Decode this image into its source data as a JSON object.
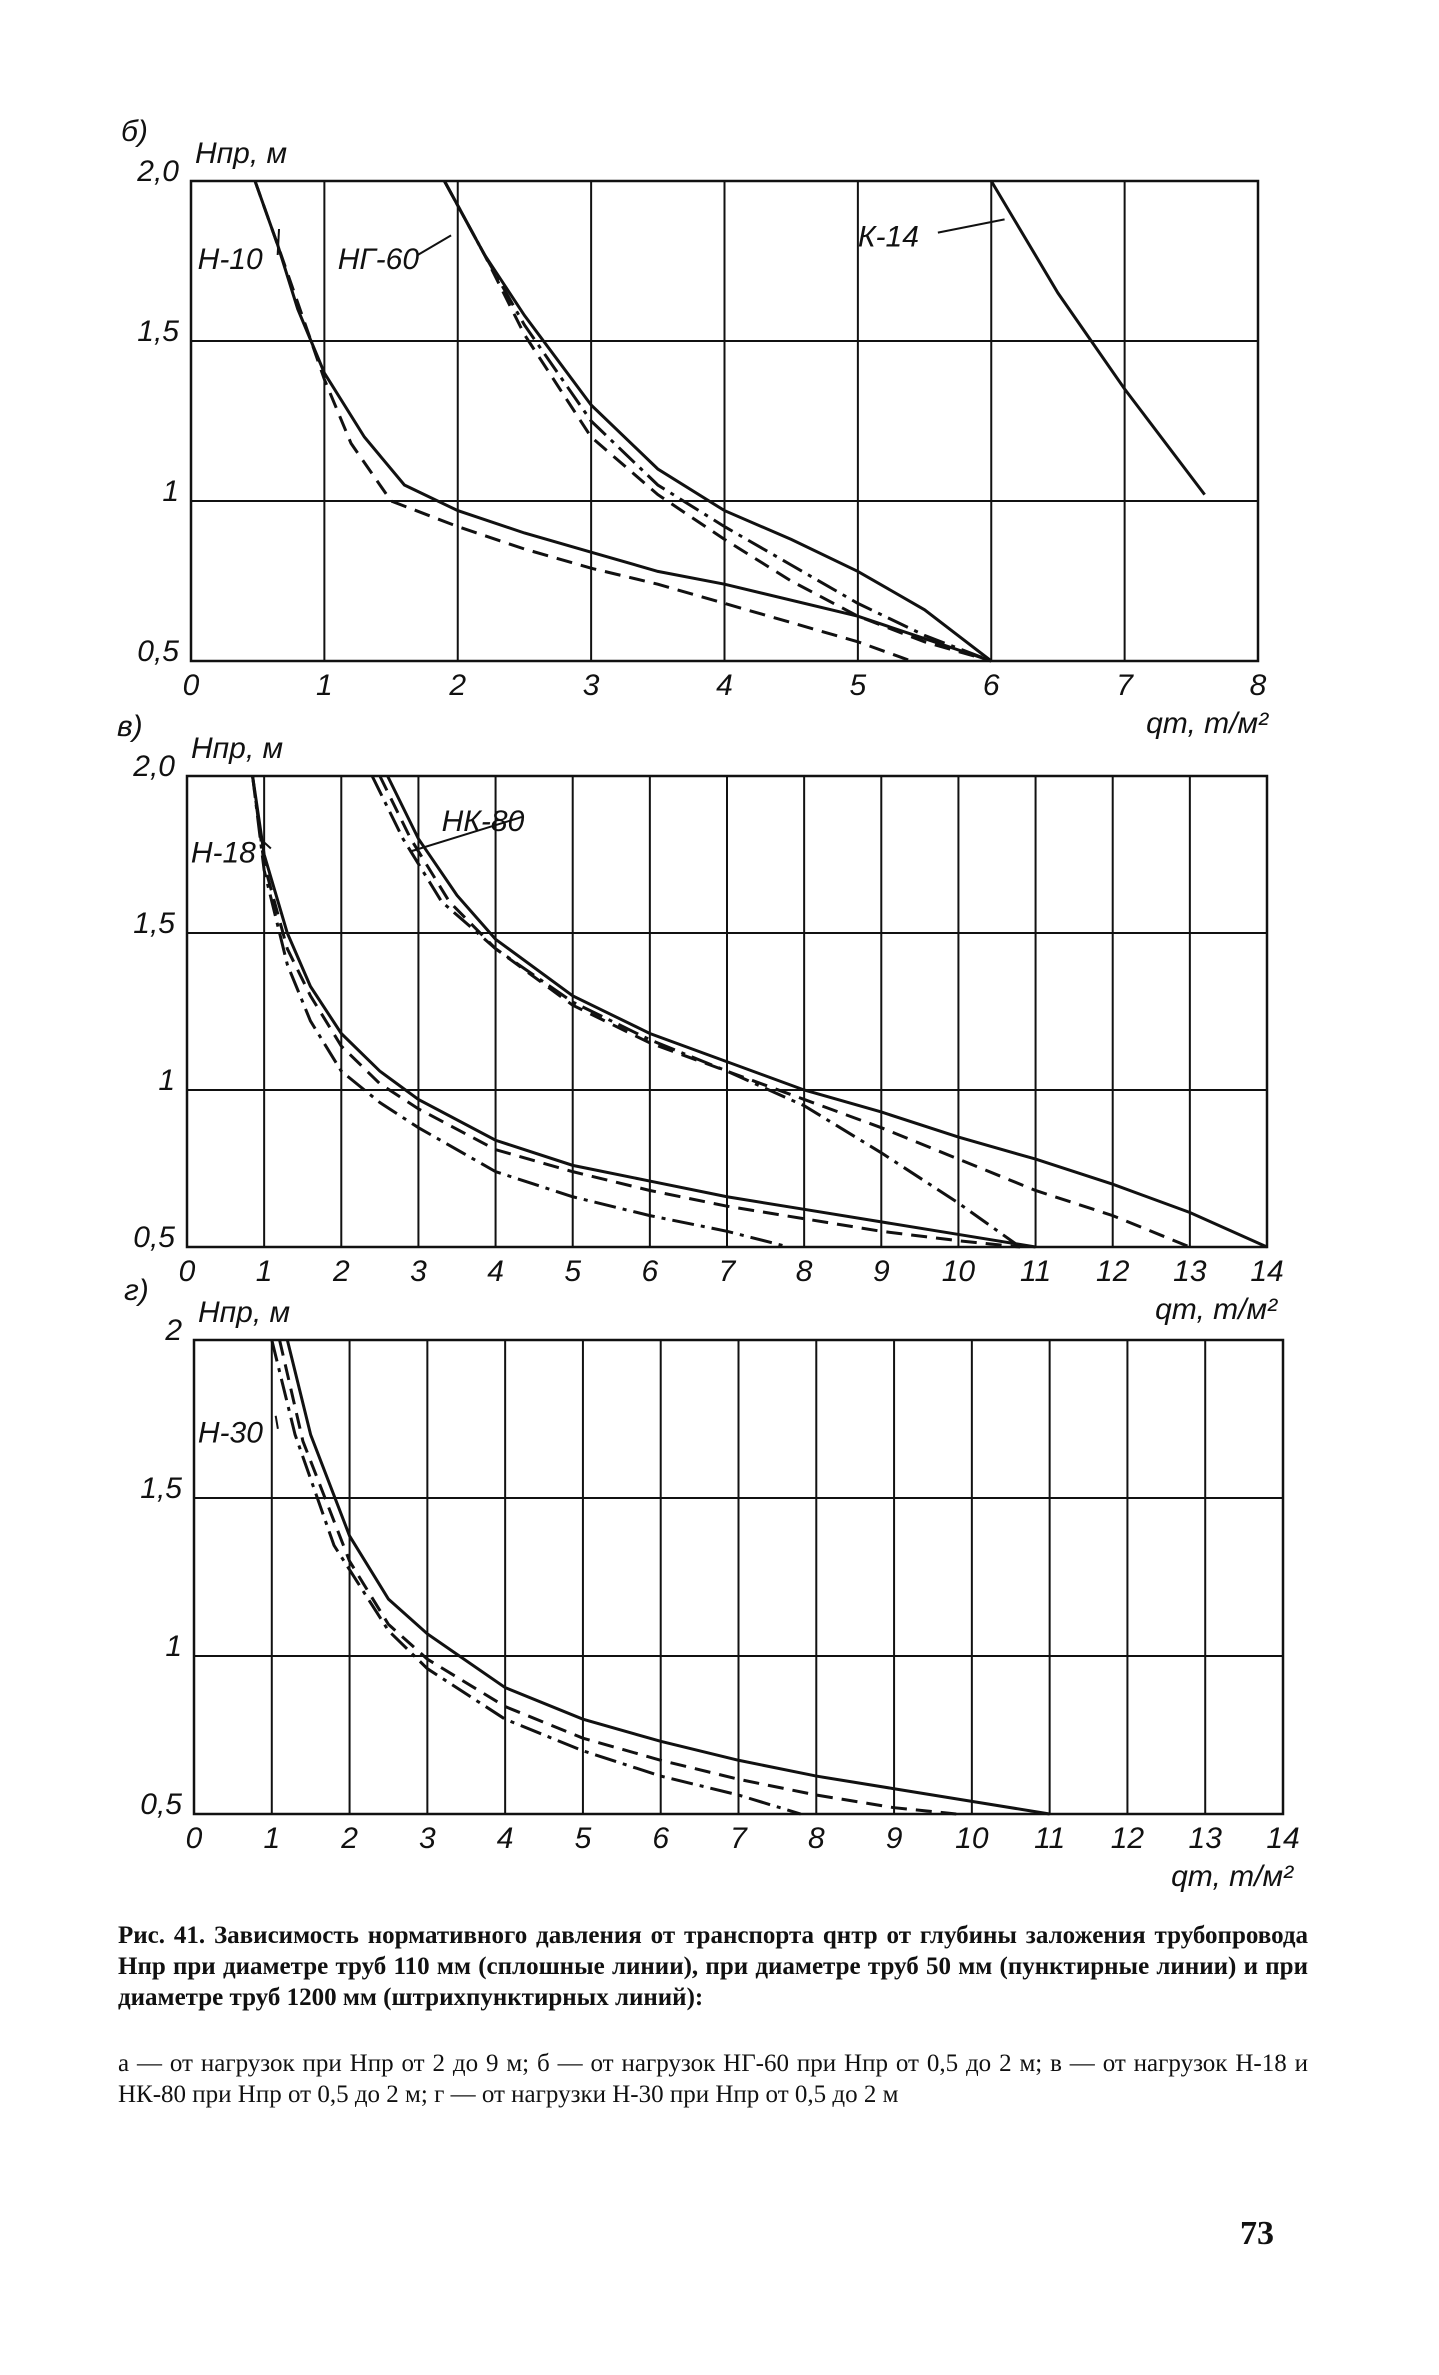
{
  "chart_data": [
    {
      "type": "line",
      "panel_label": "б)",
      "ylabel": "Hпр, м",
      "xlabel": "qт, т/м²",
      "xlim": [
        0,
        8
      ],
      "ylim": [
        0.5,
        2
      ],
      "xticks": [
        0,
        1,
        2,
        3,
        4,
        5,
        6,
        7,
        8
      ],
      "yticks": [
        {
          "value": 0.5,
          "label": "0,5"
        },
        1,
        {
          "value": 1.5,
          "label": "1,5"
        },
        {
          "value": 2,
          "label": "2,0"
        }
      ],
      "grid": true,
      "annotations": [
        "Н-10",
        "НГ-60",
        "К-14"
      ],
      "series": [
        {
          "color": "#111111",
          "dash": "solid",
          "x": [
            0.48,
            0.65,
            0.8,
            1.0,
            1.3,
            1.6,
            2.0,
            2.5,
            3.0,
            3.5,
            4.0,
            5.0,
            6.0
          ],
          "values": [
            2,
            1.8,
            1.6,
            1.4,
            1.2,
            1.05,
            0.97,
            0.9,
            0.84,
            0.78,
            0.74,
            0.64,
            0.5
          ]
        },
        {
          "color": "#111111",
          "dash": "dashed",
          "x": [
            0.48,
            0.65,
            0.8,
            1.0,
            1.2,
            1.5,
            2.0,
            2.5,
            3.0,
            3.5,
            4.0,
            4.5,
            5.0,
            5.4
          ],
          "values": [
            2,
            1.8,
            1.62,
            1.38,
            1.18,
            1.0,
            0.92,
            0.85,
            0.79,
            0.74,
            0.68,
            0.62,
            0.56,
            0.5
          ]
        },
        {
          "color": "#111111",
          "dash": "solid",
          "x": [
            1.9,
            2.2,
            2.5,
            3.0,
            3.5,
            4.0,
            4.5,
            5.0,
            5.5,
            6.0
          ],
          "values": [
            2,
            1.77,
            1.58,
            1.3,
            1.1,
            0.97,
            0.88,
            0.78,
            0.66,
            0.5
          ]
        },
        {
          "color": "#111111",
          "dash": "dashdot",
          "x": [
            1.9,
            2.2,
            2.5,
            3.0,
            3.5,
            4.0,
            4.5,
            5.0,
            5.5,
            6.0
          ],
          "values": [
            2,
            1.77,
            1.55,
            1.25,
            1.05,
            0.92,
            0.8,
            0.68,
            0.58,
            0.5
          ]
        },
        {
          "color": "#111111",
          "dash": "dashed",
          "x": [
            1.9,
            2.2,
            2.5,
            3.0,
            3.5,
            4.0,
            4.5,
            5.0,
            5.5,
            6.0
          ],
          "values": [
            2,
            1.77,
            1.52,
            1.2,
            1.02,
            0.88,
            0.75,
            0.64,
            0.56,
            0.5
          ]
        },
        {
          "color": "#111111",
          "dash": "solid",
          "x": [
            6.0,
            6.5,
            7.0,
            7.6
          ],
          "values": [
            2,
            1.65,
            1.35,
            1.02
          ]
        }
      ]
    },
    {
      "type": "line",
      "panel_label": "в)",
      "ylabel": "Hпр, м",
      "xlabel": "qт, т/м²",
      "xlim": [
        0,
        14
      ],
      "ylim": [
        0.5,
        2
      ],
      "xticks": [
        0,
        1,
        2,
        3,
        4,
        5,
        6,
        7,
        8,
        9,
        10,
        11,
        12,
        13,
        14
      ],
      "yticks": [
        {
          "value": 0.5,
          "label": "0,5"
        },
        1,
        {
          "value": 1.5,
          "label": "1,5"
        },
        {
          "value": 2,
          "label": "2,0"
        }
      ],
      "grid": true,
      "annotations": [
        "Н-18",
        "НК-80"
      ],
      "series": [
        {
          "color": "#111111",
          "dash": "solid",
          "x": [
            0.85,
            1.0,
            1.3,
            1.6,
            2.0,
            2.5,
            3.0,
            4.0,
            5.0,
            6.0,
            7.0,
            8.0,
            9.0,
            10.0,
            11.0
          ],
          "values": [
            2,
            1.75,
            1.5,
            1.33,
            1.18,
            1.06,
            0.97,
            0.84,
            0.76,
            0.71,
            0.66,
            0.62,
            0.58,
            0.54,
            0.5
          ]
        },
        {
          "color": "#111111",
          "dash": "dashed",
          "x": [
            0.85,
            1.0,
            1.3,
            1.6,
            2.0,
            2.5,
            3.0,
            4.0,
            5.0,
            6.0,
            7.0,
            8.0,
            9.0,
            10.0,
            10.8
          ],
          "values": [
            2,
            1.72,
            1.45,
            1.3,
            1.14,
            1.02,
            0.94,
            0.81,
            0.74,
            0.68,
            0.63,
            0.59,
            0.55,
            0.52,
            0.5
          ]
        },
        {
          "color": "#111111",
          "dash": "dashdot",
          "x": [
            0.85,
            1.0,
            1.3,
            1.6,
            2.0,
            2.5,
            3.0,
            4.0,
            5.0,
            6.0,
            7.0,
            7.8
          ],
          "values": [
            2,
            1.7,
            1.4,
            1.22,
            1.06,
            0.96,
            0.88,
            0.74,
            0.66,
            0.6,
            0.55,
            0.5
          ]
        },
        {
          "color": "#111111",
          "dash": "solid",
          "x": [
            2.6,
            3.0,
            3.5,
            4.0,
            5.0,
            6.0,
            7.0,
            8.0,
            9.0,
            10.0,
            11.0,
            12.0,
            13.0,
            14.0
          ],
          "values": [
            2,
            1.8,
            1.62,
            1.48,
            1.3,
            1.18,
            1.09,
            1.0,
            0.93,
            0.85,
            0.78,
            0.7,
            0.61,
            0.5
          ]
        },
        {
          "color": "#111111",
          "dash": "dashed",
          "x": [
            2.5,
            2.9,
            3.4,
            4.0,
            5.0,
            6.0,
            7.0,
            8.0,
            9.0,
            10.0,
            11.0,
            12.0,
            13.0
          ],
          "values": [
            2,
            1.8,
            1.6,
            1.45,
            1.27,
            1.15,
            1.06,
            0.97,
            0.88,
            0.78,
            0.68,
            0.6,
            0.5
          ]
        },
        {
          "color": "#111111",
          "dash": "dashdot",
          "x": [
            2.4,
            2.8,
            3.3,
            4.0,
            5.0,
            6.0,
            7.0,
            8.0,
            9.0,
            10.0,
            10.8
          ],
          "values": [
            2,
            1.8,
            1.6,
            1.45,
            1.28,
            1.16,
            1.06,
            0.95,
            0.8,
            0.64,
            0.5
          ]
        }
      ]
    },
    {
      "type": "line",
      "panel_label": "г)",
      "ylabel": "Hпр, м",
      "xlabel": "qт, т/м²",
      "xlim": [
        0,
        14
      ],
      "ylim": [
        0.5,
        2
      ],
      "xticks": [
        0,
        1,
        2,
        3,
        4,
        5,
        6,
        7,
        8,
        9,
        10,
        11,
        12,
        13,
        14
      ],
      "yticks": [
        {
          "value": 0.5,
          "label": "0,5"
        },
        1,
        {
          "value": 1.5,
          "label": "1,5"
        },
        2
      ],
      "grid": true,
      "annotations": [
        "Н-30"
      ],
      "series": [
        {
          "color": "#111111",
          "dash": "solid",
          "x": [
            1.2,
            1.5,
            2.0,
            2.5,
            3.0,
            4.0,
            5.0,
            6.0,
            7.0,
            8.0,
            9.0,
            10.0,
            11.0
          ],
          "values": [
            2,
            1.7,
            1.38,
            1.18,
            1.07,
            0.9,
            0.8,
            0.73,
            0.67,
            0.62,
            0.58,
            0.54,
            0.5
          ]
        },
        {
          "color": "#111111",
          "dash": "dashed",
          "x": [
            1.1,
            1.4,
            2.0,
            2.5,
            3.0,
            4.0,
            5.0,
            6.0,
            7.0,
            8.0,
            9.0,
            9.8
          ],
          "values": [
            2,
            1.68,
            1.3,
            1.1,
            0.99,
            0.84,
            0.74,
            0.67,
            0.61,
            0.56,
            0.52,
            0.5
          ]
        },
        {
          "color": "#111111",
          "dash": "dashdot",
          "x": [
            1.0,
            1.3,
            1.8,
            2.5,
            3.0,
            4.0,
            5.0,
            6.0,
            7.0,
            7.8
          ],
          "values": [
            2,
            1.7,
            1.35,
            1.08,
            0.96,
            0.8,
            0.7,
            0.62,
            0.56,
            0.5
          ]
        }
      ]
    }
  ],
  "caption": {
    "title": "Рис. 41. Зависимость нормативного давления от транспорта qнтр от глубины заложения трубопровода Hпр при диаметре труб 110 мм (сплошные линии), при диаметре труб 50 мм (пунктирные линии) и при диаметре труб 1200 мм (штрихпунктирных линий):",
    "text": "а — от нагрузок при Hпр от 2 до 9 м; б — от нагрузок НГ-60 при Hпр от 0,5 до 2 м; в — от нагрузок Н-18 и НК-80 при Hпр от 0,5 до 2 м; г — от нагрузки Н-30 при Hпр от 0,5 до 2 м"
  },
  "page_number": "73"
}
